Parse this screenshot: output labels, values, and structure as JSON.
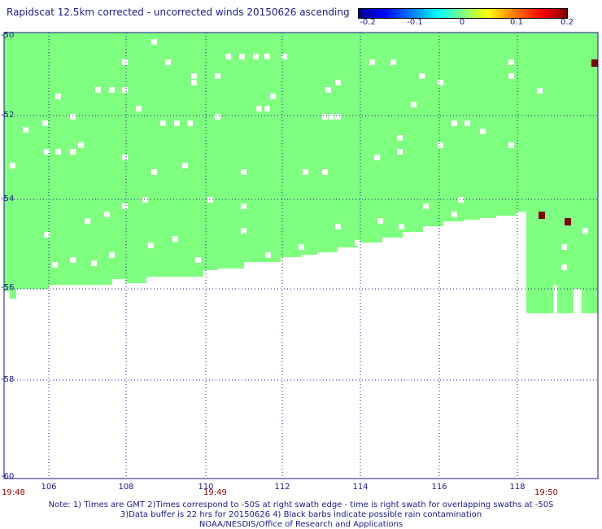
{
  "title": "Rapidscat 12.5km corrected - uncorrected winds 20150626 ascending",
  "colorbar": {
    "labels": [
      "-0.2",
      "-0.1",
      "0",
      "0.1",
      "0.2"
    ],
    "min": -0.2,
    "max": 0.2
  },
  "map": {
    "lat_labels": [
      "-50",
      "-52",
      "-54",
      "-56",
      "-58",
      "-60"
    ],
    "lon_labels": [
      "106",
      "108",
      "110",
      "112",
      "114",
      "116",
      "118"
    ],
    "lat_range": [
      -60,
      -50
    ],
    "lon_range": [
      105,
      119.7
    ],
    "time_labels": [
      "19:48",
      "19:49",
      "19:50"
    ],
    "colors": {
      "swath": "#7fff7f",
      "grid": "#1a1a8c",
      "rain": "#800000"
    }
  },
  "notes": [
    "Note: 1) Times are GMT 2)Times correspond to -50S at right swath edge - time is right swath for overlapping swaths at -50S",
    "3)Data buffer is 22 hrs for 20150626 4) Black barbs indicate possible rain contamination",
    "NOAA/NESDIS/Office of Research and Applications"
  ]
}
